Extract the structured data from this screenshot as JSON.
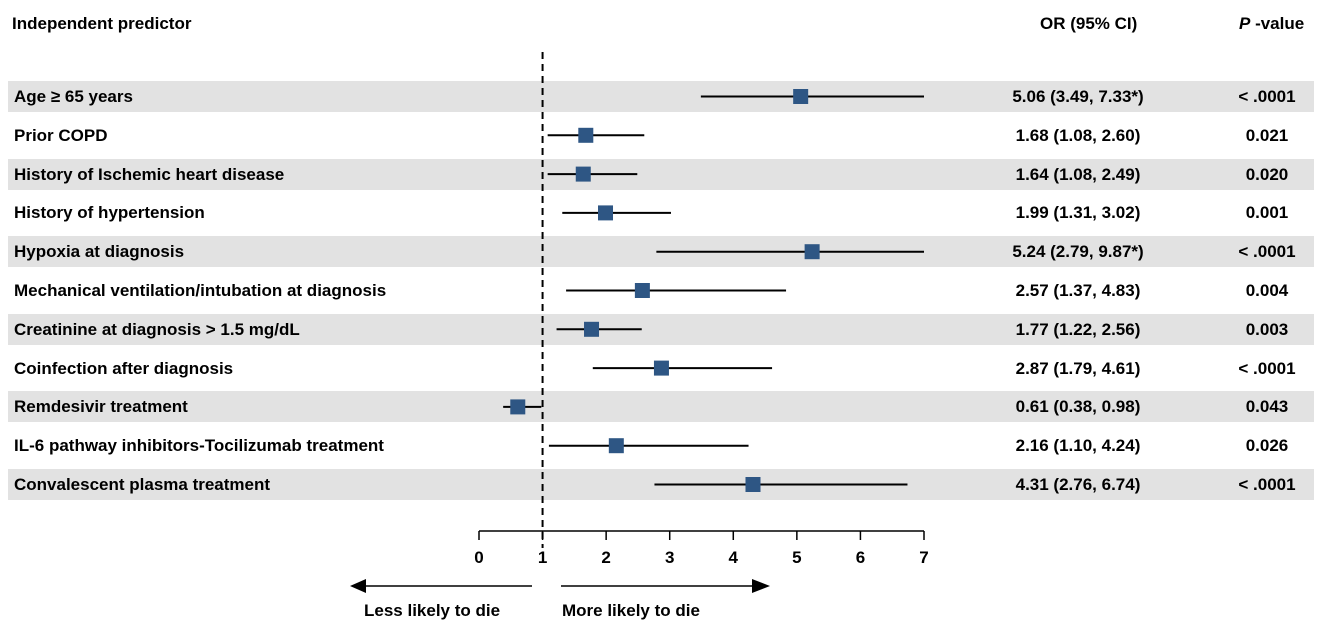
{
  "header": {
    "predictor": "Independent predictor",
    "or": "OR (95% CI)",
    "p_italic": "P",
    "p_rest": " -value"
  },
  "direction": {
    "left": "Less likely to die",
    "right": "More likely to die"
  },
  "chart_data": {
    "type": "forest",
    "xlim": [
      0,
      7
    ],
    "xticks": [
      "0",
      "1",
      "2",
      "3",
      "4",
      "5",
      "6",
      "7"
    ],
    "reference_line": 1,
    "marker_color": "#2e5684",
    "shading_color": "#e2e2e2",
    "rows": [
      {
        "label": "Age ≥ 65 years",
        "or": 5.06,
        "lo": 3.49,
        "hi": 7.0,
        "or_text": "5.06 (3.49, 7.33*)",
        "p": "< .0001",
        "shaded": true
      },
      {
        "label": "Prior COPD",
        "or": 1.68,
        "lo": 1.08,
        "hi": 2.6,
        "or_text": "1.68 (1.08, 2.60)",
        "p": "0.021",
        "shaded": false
      },
      {
        "label": "History of Ischemic heart disease",
        "or": 1.64,
        "lo": 1.08,
        "hi": 2.49,
        "or_text": "1.64 (1.08, 2.49)",
        "p": "0.020",
        "shaded": true
      },
      {
        "label": "History of hypertension",
        "or": 1.99,
        "lo": 1.31,
        "hi": 3.02,
        "or_text": "1.99 (1.31, 3.02)",
        "p": "0.001",
        "shaded": false
      },
      {
        "label": "Hypoxia at diagnosis",
        "or": 5.24,
        "lo": 2.79,
        "hi": 7.0,
        "or_text": "5.24 (2.79, 9.87*)",
        "p": "< .0001",
        "shaded": true
      },
      {
        "label": "Mechanical ventilation/intubation at diagnosis",
        "or": 2.57,
        "lo": 1.37,
        "hi": 4.83,
        "or_text": "2.57 (1.37, 4.83)",
        "p": "0.004",
        "shaded": false
      },
      {
        "label": "Creatinine at diagnosis > 1.5 mg/dL",
        "or": 1.77,
        "lo": 1.22,
        "hi": 2.56,
        "or_text": "1.77 (1.22, 2.56)",
        "p": "0.003",
        "shaded": true
      },
      {
        "label": "Coinfection after diagnosis",
        "or": 2.87,
        "lo": 1.79,
        "hi": 4.61,
        "or_text": "2.87 (1.79, 4.61)",
        "p": "< .0001",
        "shaded": false
      },
      {
        "label": "Remdesivir treatment",
        "or": 0.61,
        "lo": 0.38,
        "hi": 0.98,
        "or_text": "0.61 (0.38, 0.98)",
        "p": "0.043",
        "shaded": true
      },
      {
        "label": "IL-6 pathway inhibitors-Tocilizumab treatment",
        "or": 2.16,
        "lo": 1.1,
        "hi": 4.24,
        "or_text": "2.16 (1.10, 4.24)",
        "p": "0.026",
        "shaded": false
      },
      {
        "label": "Convalescent plasma treatment",
        "or": 4.31,
        "lo": 2.76,
        "hi": 6.74,
        "or_text": "4.31 (2.76, 6.74)",
        "p": "< .0001",
        "shaded": true
      }
    ]
  }
}
